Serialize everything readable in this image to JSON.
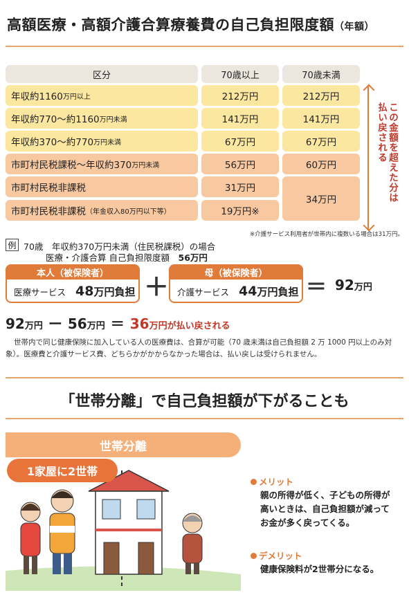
{
  "title": {
    "main": "高額医療・高額介護合算療養費の自己負担限度額",
    "suffix": "（年額）"
  },
  "table": {
    "headers": [
      "区分",
      "70歳以上",
      "70歳未満"
    ],
    "rows": [
      {
        "label": "年収約1160",
        "label_small": "万円以上",
        "over70": "212万円",
        "under70": "212万円"
      },
      {
        "label": "年収約770〜約1160",
        "label_small": "万円未満",
        "over70": "141万円",
        "under70": "141万円"
      },
      {
        "label": "年収約370〜約770",
        "label_small": "万円未満",
        "over70": "67万円",
        "under70": "67万円"
      },
      {
        "label": "市町村民税課税〜年収約370",
        "label_small": "万円未満",
        "over70": "56万円",
        "under70": "60万円"
      },
      {
        "label": "市町村民税非課税",
        "label_small": "",
        "over70": "31万円",
        "under70": "34万円"
      },
      {
        "label": "市町村民税非課税",
        "label_small": "（年金収入80万円以下等）",
        "over70": "19万円※",
        "under70": ""
      }
    ],
    "side_note": {
      "col1": "この金額を超えた分は",
      "col2": "払い戻される"
    },
    "footnote": "※介護サービス利用者が世帯内に複数いる場合は31万円。"
  },
  "example": {
    "mark": "例",
    "line1": "70歳　年収約370万円未満（住民税課税）の場合",
    "line2": "医療・介護合算 自己負担限度額",
    "line2_value": "56万円",
    "person1": {
      "title": "本人（被保険者）",
      "service": "医療サービス",
      "amount": "48",
      "amount_suffix": "万円負担"
    },
    "person2": {
      "title": "母（被保険者）",
      "service": "介護サービス",
      "amount": "44",
      "amount_suffix": "万円負担"
    },
    "plus": "＋",
    "equals": "＝",
    "minus": "ー",
    "total": "92",
    "unit": "万円",
    "calc": {
      "a": "92",
      "b": "56",
      "c": "36",
      "c_suffix": "万円が払い戻される"
    }
  },
  "paragraph": "世帯内で同じ健康保険に加入している人の医療費は、合算が可能（70 歳未満は自己負担額 2 万 1000 円以上のみ対象）。医療費と介護サービス費、どちらかがかからなかった場合は、払い戻しは受けられません。",
  "section2": {
    "heading": "「世帯分離」で自己負担額が下がることも",
    "banner": "世帯分離",
    "pill": "1家屋に2世帯",
    "merit_label": "メリット",
    "merit_text": [
      "親の所得が低く、子どもの所得が",
      "高いときは、自己負担額が減って",
      "お金が多く戻ってくる。"
    ],
    "demerit_label": "デメリット",
    "demerit_text": [
      "健康保険料が2世帯分になる。"
    ]
  },
  "colors": {
    "accent": "#e07b39",
    "yellow_row": "#fbe7a0",
    "orange_row": "#f8c9a0",
    "header": "#ece6df",
    "red": "#c0392b"
  }
}
